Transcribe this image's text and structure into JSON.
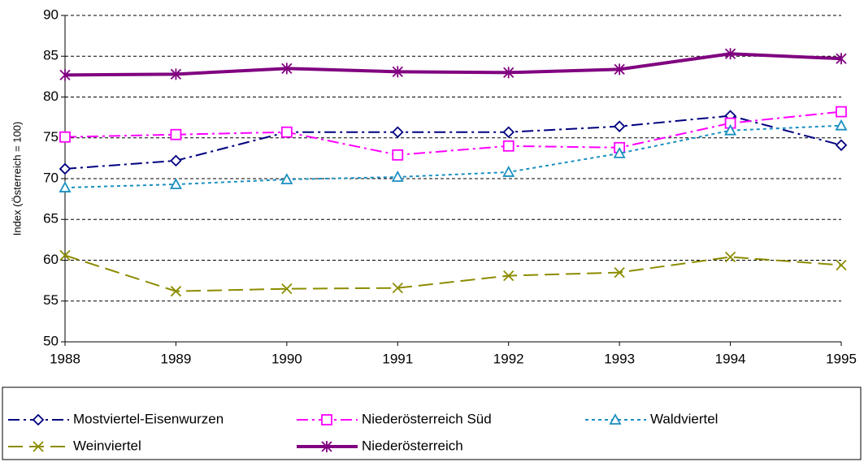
{
  "chart_data": {
    "type": "line",
    "y_label": "Index (Österreich = 100)",
    "x": [
      1988,
      1989,
      1990,
      1991,
      1992,
      1993,
      1994,
      1995
    ],
    "xlim": [
      1988,
      1995
    ],
    "xticks": [
      1988,
      1989,
      1990,
      1991,
      1992,
      1993,
      1994,
      1995
    ],
    "ylim": [
      50,
      90
    ],
    "yticks": [
      50,
      55,
      60,
      65,
      70,
      75,
      80,
      85,
      90
    ],
    "grid": true,
    "legend": "bottom",
    "series": [
      {
        "name": "Mostviertel-Eisenwurzen",
        "color": "#000080",
        "linestyle": "dashdot",
        "marker": "diamond",
        "values": [
          71.2,
          72.2,
          75.7,
          75.7,
          75.7,
          76.4,
          77.7,
          74.1
        ]
      },
      {
        "name": "Niederösterreich Süd",
        "color": "#ff00ff",
        "linestyle": "dashdot",
        "marker": "square",
        "values": [
          75.1,
          75.4,
          75.7,
          72.9,
          74.0,
          73.8,
          76.8,
          78.2
        ]
      },
      {
        "name": "Waldviertel",
        "color": "#1a8fc0",
        "linestyle": "dotted",
        "marker": "triangle",
        "values": [
          68.9,
          69.3,
          69.9,
          70.2,
          70.8,
          73.1,
          75.9,
          76.5
        ]
      },
      {
        "name": "Weinviertel",
        "color": "#8c8c00",
        "linestyle": "dashed",
        "marker": "x",
        "values": [
          60.6,
          56.2,
          56.5,
          56.6,
          58.1,
          58.5,
          60.4,
          59.4
        ]
      },
      {
        "name": "Niederösterreich",
        "color": "#800080",
        "linestyle": "solid",
        "marker": "star",
        "values": [
          82.7,
          82.8,
          83.5,
          83.1,
          83.0,
          83.4,
          85.3,
          84.7
        ]
      }
    ]
  }
}
